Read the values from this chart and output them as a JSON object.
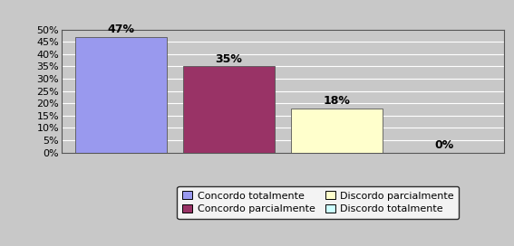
{
  "categories": [
    "Concordo totalmente",
    "Concordo parcialmente",
    "Discordo parcialmente",
    "Discordo totalmente"
  ],
  "values": [
    0.47,
    0.35,
    0.18,
    0.0
  ],
  "bar_colors": [
    "#9999EE",
    "#993366",
    "#FFFFCC",
    "#CCFFFF"
  ],
  "bar_edge_color": "#555555",
  "labels": [
    "47%",
    "35%",
    "18%",
    "0%"
  ],
  "ylim": [
    0,
    0.5
  ],
  "yticks": [
    0.0,
    0.05,
    0.1,
    0.15,
    0.2,
    0.25,
    0.3,
    0.35,
    0.4,
    0.45,
    0.5
  ],
  "yticklabels": [
    "0%",
    "5%",
    "10%",
    "15%",
    "20%",
    "25%",
    "30%",
    "35%",
    "40%",
    "45%",
    "50%"
  ],
  "background_color": "#C8C8C8",
  "plot_bg_color": "#C8C8C8",
  "legend_labels": [
    "Concordo totalmente",
    "Concordo parcialmente",
    "Discordo parcialmente",
    "Discordo totalmente"
  ],
  "legend_colors": [
    "#9999EE",
    "#993366",
    "#FFFFCC",
    "#CCFFFF"
  ],
  "bar_width": 0.85,
  "label_fontsize": 9,
  "tick_fontsize": 8,
  "legend_fontsize": 8
}
